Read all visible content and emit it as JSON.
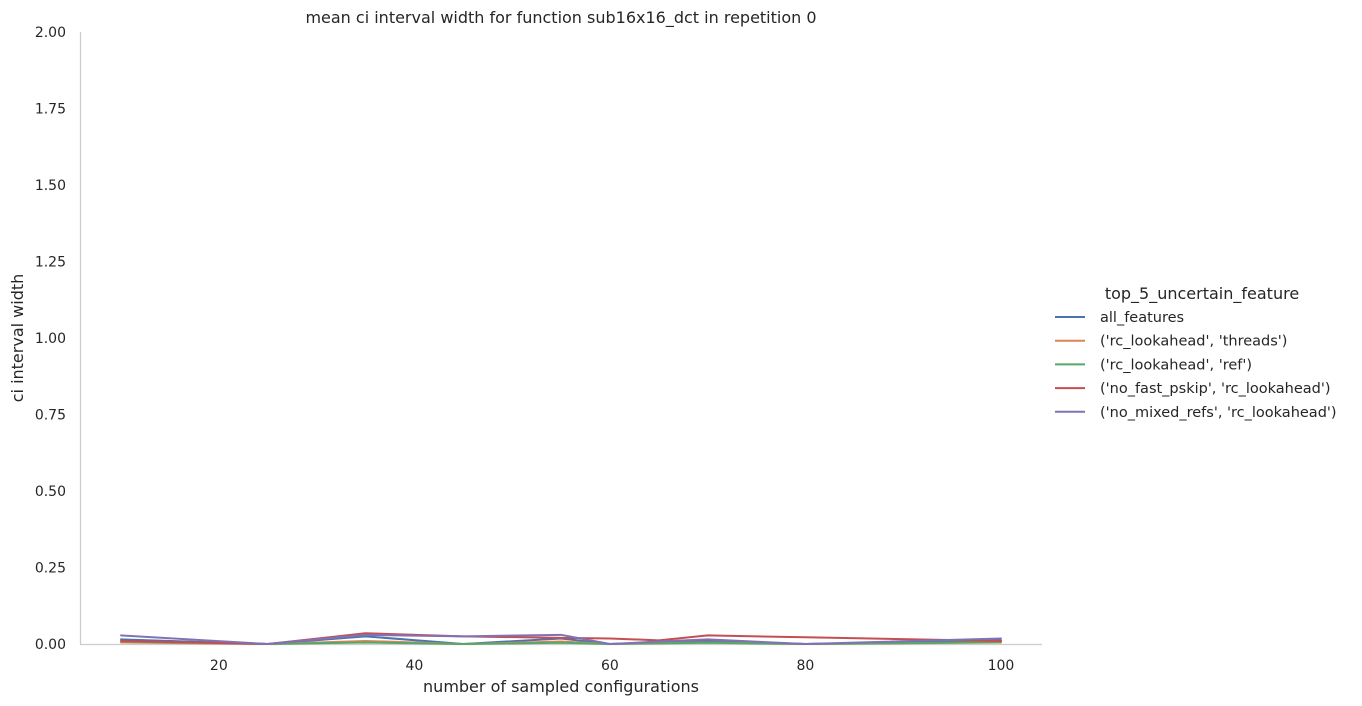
{
  "chart_data": {
    "type": "line",
    "title": "mean ci interval width for function sub16x16_dct in repetition 0",
    "xlabel": "number of sampled configurations",
    "ylabel": "ci interval width",
    "xlim": [
      5.8,
      104.2
    ],
    "ylim": [
      0,
      2
    ],
    "xticks": [
      20,
      40,
      60,
      80,
      100
    ],
    "yticks": [
      0.0,
      0.25,
      0.5,
      0.75,
      1.0,
      1.25,
      1.5,
      1.75,
      2.0
    ],
    "xtick_labels": [
      "20",
      "40",
      "60",
      "80",
      "100"
    ],
    "ytick_labels": [
      "0.00",
      "0.25",
      "0.50",
      "0.75",
      "1.00",
      "1.25",
      "1.50",
      "1.75",
      "2.00"
    ],
    "grid": false,
    "legend": {
      "title": "top_5_uncertain_feature",
      "placement": "right"
    },
    "x": [
      10,
      25,
      35,
      45,
      55,
      60,
      65,
      70,
      80,
      100
    ],
    "series": [
      {
        "name": "all_features",
        "color": "#4c72b0",
        "values": [
          0.015,
          0.0,
          0.025,
          0.0,
          0.018,
          0.0,
          0.005,
          0.01,
          0.0,
          0.012
        ]
      },
      {
        "name": "('rc_lookahead', 'threads')",
        "color": "#dd8452",
        "values": [
          0.005,
          0.0,
          0.01,
          0.0,
          0.008,
          0.0,
          0.003,
          0.005,
          0.0,
          0.005
        ]
      },
      {
        "name": "('rc_lookahead', 'ref')",
        "color": "#55a868",
        "values": [
          0.008,
          0.0,
          0.005,
          0.0,
          0.004,
          0.0,
          0.002,
          0.004,
          0.0,
          0.006
        ]
      },
      {
        "name": "('no_fast_pskip', 'rc_lookahead')",
        "color": "#c44e52",
        "values": [
          0.01,
          0.0,
          0.035,
          0.025,
          0.02,
          0.018,
          0.012,
          0.028,
          0.022,
          0.01
        ]
      },
      {
        "name": "('no_mixed_refs', 'rc_lookahead')",
        "color": "#8172b3",
        "values": [
          0.028,
          0.0,
          0.03,
          0.025,
          0.03,
          0.0,
          0.008,
          0.015,
          0.0,
          0.018
        ]
      }
    ]
  }
}
